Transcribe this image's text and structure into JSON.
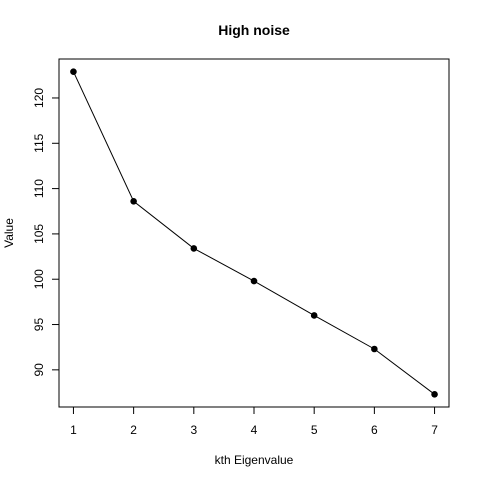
{
  "chart_data": {
    "type": "line",
    "title": "High noise",
    "xlabel": "kth Eigenvalue",
    "ylabel": "Value",
    "x": [
      1,
      2,
      3,
      4,
      5,
      6,
      7
    ],
    "values": [
      122.9,
      108.6,
      103.4,
      99.8,
      96.0,
      92.3,
      87.3
    ],
    "xlim": [
      0.76,
      7.24
    ],
    "ylim": [
      85.9,
      124.3
    ],
    "xticks": [
      1,
      2,
      3,
      4,
      5,
      6,
      7
    ],
    "yticks": [
      90,
      95,
      100,
      105,
      110,
      115,
      120
    ],
    "grid": false,
    "markers": true,
    "line_color": "#000000",
    "marker_color": "#000000"
  }
}
